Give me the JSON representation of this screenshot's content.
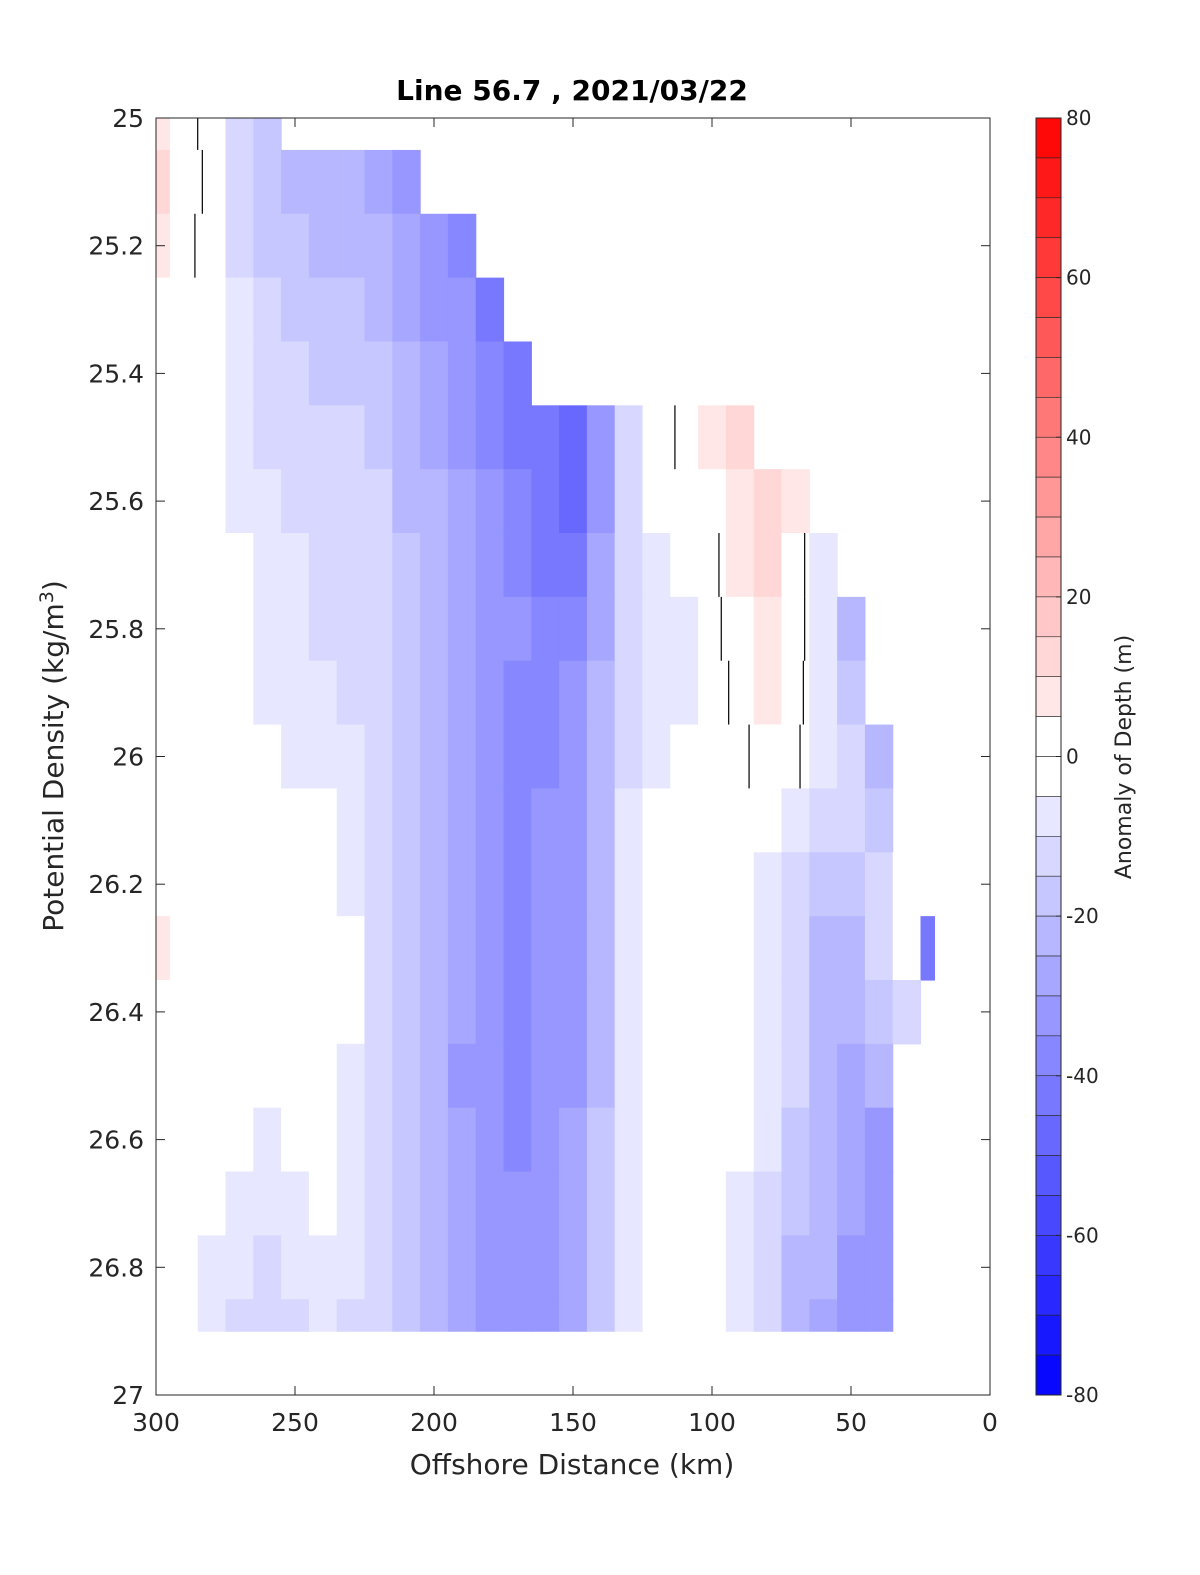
{
  "chart_data": {
    "type": "heatmap",
    "title": "Line 56.7 , 2021/03/22",
    "xlabel": "Offshore Distance (km)",
    "ylabel_main": "Potential Density (kg/m",
    "ylabel_sup": "3",
    "ylabel_close": ")",
    "colorbar_label": "Anomaly of Depth (m)",
    "xlim": [
      300,
      0
    ],
    "x_reversed": true,
    "ylim": [
      25,
      27
    ],
    "y_reversed": true,
    "clim": [
      -80,
      80
    ],
    "contour_step": 5,
    "zero_contour": true,
    "x_ticks": [
      300,
      250,
      200,
      150,
      100,
      50,
      0
    ],
    "x_tick_labels": [
      "300",
      "250",
      "200",
      "150",
      "100",
      "50",
      "0"
    ],
    "y_ticks": [
      25,
      25.2,
      25.4,
      25.6,
      25.8,
      26,
      26.2,
      26.4,
      26.6,
      26.8,
      27
    ],
    "y_tick_labels": [
      "25",
      "25.2",
      "25.4",
      "25.6",
      "25.8",
      "26",
      "26.2",
      "26.4",
      "26.6",
      "26.8",
      "27"
    ],
    "colorbar_ticks": [
      80,
      60,
      40,
      20,
      0,
      -20,
      -40,
      -60,
      -80
    ],
    "colorbar_tick_labels": [
      "80",
      "60",
      "40",
      "20",
      "0",
      "-20",
      "-40",
      "-60",
      "-80"
    ],
    "colormap": {
      "negative": "#0000ff",
      "zero": "#ffffff",
      "positive": "#ff0000"
    },
    "stations_km": [
      300,
      290,
      280,
      270,
      260,
      250,
      240,
      230,
      220,
      210,
      200,
      190,
      180,
      170,
      160,
      150,
      140,
      130,
      120,
      110,
      100,
      90,
      80,
      70,
      60,
      50,
      40,
      30,
      20
    ],
    "density_levels": [
      25.0,
      25.1,
      25.2,
      25.3,
      25.4,
      25.5,
      25.6,
      25.7,
      25.8,
      25.9,
      26.0,
      26.1,
      26.2,
      26.3,
      26.4,
      26.5,
      26.6,
      26.7,
      26.8,
      26.9
    ],
    "upper_data_limit_density": [
      25.0,
      25.0,
      25.0,
      25.0,
      25.0,
      25.1,
      25.1,
      25.1,
      25.1,
      25.1,
      25.2,
      25.2,
      25.3,
      25.4,
      25.5,
      25.5,
      25.5,
      25.5,
      25.4,
      25.4,
      25.5,
      25.5,
      25.6,
      25.6,
      25.7,
      25.8,
      26.0,
      26.2,
      26.3
    ],
    "lower_data_limit_density": [
      26.9,
      26.9,
      26.9,
      26.9,
      26.9,
      26.9,
      26.9,
      26.9,
      26.9,
      26.9,
      26.9,
      26.9,
      26.9,
      26.9,
      26.9,
      26.9,
      26.9,
      26.9,
      26.9,
      26.9,
      26.9,
      26.9,
      26.9,
      26.9,
      26.9,
      26.9,
      26.9,
      26.4,
      26.3
    ],
    "depth_anomaly_m": [
      [
        8,
        3,
        -3,
        -10,
        -18,
        -22,
        -24,
        -26,
        -28,
        -30,
        -34,
        -38,
        -44,
        -48,
        -52,
        -52,
        -40,
        -20,
        0,
        4,
        10,
        12,
        10,
        5,
        -15,
        -25,
        -30,
        -35,
        -40
      ],
      [
        10,
        4,
        -2,
        -10,
        -17,
        -20,
        -22,
        -24,
        -26,
        -30,
        -34,
        -38,
        -44,
        -48,
        -52,
        -52,
        -40,
        -20,
        0,
        4,
        10,
        12,
        10,
        5,
        -15,
        -25,
        -30,
        -35,
        -40
      ],
      [
        7,
        2,
        -3,
        -10,
        -15,
        -18,
        -20,
        -22,
        -24,
        -28,
        -32,
        -36,
        -42,
        -46,
        -50,
        -52,
        -40,
        -20,
        0,
        4,
        10,
        12,
        10,
        5,
        -15,
        -25,
        -30,
        -35,
        -40
      ],
      [
        2,
        0,
        -3,
        -9,
        -14,
        -16,
        -18,
        -18,
        -20,
        -26,
        -30,
        -34,
        -40,
        -44,
        -48,
        -50,
        -40,
        -20,
        0,
        4,
        10,
        12,
        10,
        5,
        -15,
        -25,
        -30,
        -35,
        -40
      ],
      [
        0,
        0,
        -3,
        -8,
        -12,
        -14,
        -16,
        -16,
        -18,
        -24,
        -28,
        -32,
        -38,
        -42,
        -46,
        -48,
        -36,
        -16,
        0,
        4,
        9,
        11,
        10,
        5,
        -15,
        -25,
        -30,
        -35,
        -40
      ],
      [
        0,
        0,
        -2,
        -6,
        -10,
        -12,
        -14,
        -14,
        -16,
        -22,
        -26,
        -30,
        -36,
        -40,
        -44,
        -48,
        -34,
        -14,
        -2,
        1,
        5,
        10,
        12,
        5,
        -15,
        -25,
        -30,
        -35,
        -40
      ],
      [
        0,
        0,
        -2,
        -5,
        -8,
        -10,
        -12,
        -12,
        -14,
        -20,
        -24,
        -28,
        -32,
        -38,
        -42,
        -46,
        -30,
        -14,
        -4,
        -2,
        0,
        8,
        12,
        5,
        -10,
        -25,
        -30,
        -35,
        -40
      ],
      [
        0,
        0,
        -2,
        -4,
        -7,
        -8,
        -10,
        -10,
        -14,
        -18,
        -22,
        -26,
        -30,
        -36,
        -40,
        -40,
        -28,
        -14,
        -6,
        -4,
        -2,
        6,
        10,
        4,
        -8,
        -22,
        -28,
        -32,
        -40
      ],
      [
        0,
        0,
        -2,
        -4,
        -6,
        -8,
        -10,
        -10,
        -14,
        -18,
        -22,
        -26,
        -30,
        -34,
        -38,
        -36,
        -26,
        -14,
        -8,
        -6,
        -2,
        4,
        8,
        3,
        -6,
        -20,
        -26,
        -30,
        -40
      ],
      [
        0,
        0,
        -2,
        -4,
        -6,
        -6,
        -8,
        -10,
        -14,
        -18,
        -22,
        -26,
        -32,
        -36,
        -36,
        -34,
        -24,
        -12,
        -8,
        -6,
        -3,
        2,
        6,
        2,
        -5,
        -16,
        -22,
        -28,
        -40
      ],
      [
        2,
        0,
        -2,
        -3,
        -4,
        -5,
        -6,
        -9,
        -12,
        -18,
        -22,
        -28,
        -32,
        -36,
        -36,
        -32,
        -22,
        -10,
        -6,
        -4,
        -3,
        -1,
        2,
        1,
        -5,
        -14,
        -20,
        -24,
        -40
      ],
      [
        4,
        0,
        -2,
        -3,
        -4,
        -4,
        -4,
        -8,
        -12,
        -18,
        -22,
        -28,
        -32,
        -36,
        -34,
        -30,
        -20,
        -8,
        -4,
        -2,
        -2,
        -3,
        -3,
        -6,
        -10,
        -14,
        -18,
        -20,
        -40
      ],
      [
        4,
        0,
        -2,
        -2,
        -2,
        -2,
        -2,
        -6,
        -12,
        -16,
        -22,
        -28,
        -32,
        -36,
        -34,
        -30,
        -20,
        -6,
        -2,
        0,
        -2,
        -4,
        -6,
        -10,
        -16,
        -18,
        -10,
        -4,
        -40
      ],
      [
        6,
        0,
        -2,
        -2,
        -2,
        0,
        0,
        -4,
        -10,
        -16,
        -22,
        -28,
        -34,
        -36,
        -34,
        -30,
        -20,
        -8,
        -2,
        -1,
        -2,
        -4,
        -8,
        -14,
        -20,
        -20,
        -10,
        -2,
        -40
      ],
      [
        4,
        0,
        -2,
        -3,
        -2,
        -1,
        0,
        -4,
        -10,
        -16,
        -22,
        -28,
        -34,
        -36,
        -34,
        -30,
        -20,
        -8,
        -2,
        -1,
        -2,
        -4,
        -8,
        -14,
        -22,
        -24,
        -18,
        -12,
        -40
      ],
      [
        3,
        0,
        -2,
        -4,
        -4,
        -2,
        -2,
        -6,
        -10,
        -16,
        -22,
        -30,
        -34,
        -36,
        -34,
        -30,
        -20,
        -8,
        -2,
        -1,
        -2,
        -4,
        -8,
        -14,
        -22,
        -26,
        -24,
        -28,
        -40
      ],
      [
        0,
        0,
        -2,
        -4,
        -6,
        -4,
        -4,
        -6,
        -10,
        -16,
        -22,
        -28,
        -34,
        -36,
        -34,
        -28,
        -18,
        -8,
        -2,
        -1,
        -2,
        -4,
        -8,
        -16,
        -22,
        -28,
        -30,
        -34,
        -40
      ],
      [
        0,
        -1,
        -4,
        -6,
        -8,
        -6,
        -4,
        -6,
        -10,
        -16,
        -22,
        -28,
        -32,
        -34,
        -32,
        -28,
        -18,
        -8,
        -4,
        -2,
        -4,
        -6,
        -10,
        -18,
        -22,
        -28,
        -32,
        -38,
        -40
      ],
      [
        0,
        -2,
        -5,
        -8,
        -10,
        -8,
        -6,
        -8,
        -10,
        -16,
        -22,
        -28,
        -32,
        -34,
        -32,
        -28,
        -18,
        -8,
        -4,
        -4,
        -4,
        -6,
        -12,
        -20,
        -24,
        -30,
        -34,
        -38,
        -40
      ],
      [
        0,
        -2,
        -6,
        -10,
        -12,
        -10,
        -8,
        -10,
        -10,
        -16,
        -22,
        -28,
        -32,
        -34,
        -32,
        -28,
        -18,
        -8,
        -4,
        -4,
        -4,
        -6,
        -12,
        -22,
        -26,
        -30,
        -32,
        -34,
        -40
      ]
    ]
  }
}
